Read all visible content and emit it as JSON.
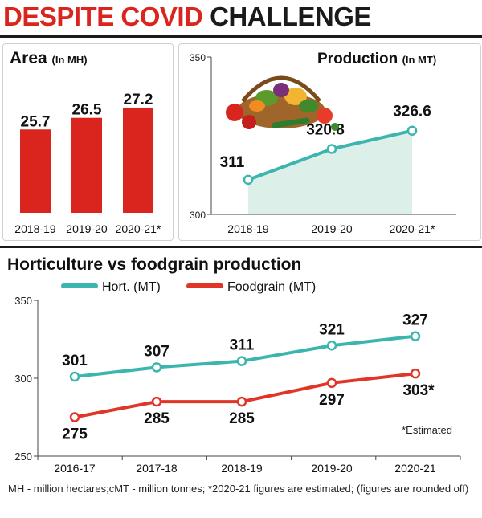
{
  "headline": {
    "part1": "DESPITE COVID",
    "part2": "CHALLENGE"
  },
  "colors": {
    "accent": "#d9251d",
    "hort": "#3bb5ad",
    "foodgrain": "#e13527",
    "area_fill": "#dcefe9"
  },
  "chart_data": [
    {
      "id": "area",
      "type": "bar",
      "title": "Area",
      "unit": "(In MH)",
      "categories": [
        "2018-19",
        "2019-20",
        "2020-21*"
      ],
      "values": [
        25.7,
        26.5,
        27.2
      ],
      "value_labels": [
        "25.7",
        "26.5",
        "27.2"
      ],
      "axis_min": 20,
      "axis_max": 30
    },
    {
      "id": "production",
      "type": "area",
      "title": "Production",
      "unit": "(In MT)",
      "categories": [
        "2018-19",
        "2019-20",
        "2020-21*"
      ],
      "values": [
        311,
        320.8,
        326.6
      ],
      "value_labels": [
        "311",
        "320.8",
        "326.6"
      ],
      "ylim": [
        300,
        350
      ],
      "yticks": [
        "350",
        "300"
      ]
    },
    {
      "id": "comparison",
      "type": "line",
      "title": "Horticulture vs foodgrain production",
      "categories": [
        "2016-17",
        "2017-18",
        "2018-19",
        "2019-20",
        "2020-21"
      ],
      "ylim": [
        250,
        350
      ],
      "yticks": [
        "350",
        "300",
        "250"
      ],
      "legend_position": "top",
      "series": [
        {
          "name": "Hort. (MT)",
          "values": [
            301,
            307,
            311,
            321,
            327
          ],
          "labels": [
            "301",
            "307",
            "311",
            "321",
            "327"
          ]
        },
        {
          "name": "Foodgrain (MT)",
          "values": [
            275,
            285,
            285,
            297,
            303
          ],
          "labels": [
            "275",
            "285",
            "285",
            "297",
            "303*"
          ]
        }
      ],
      "annotation": "*Estimated"
    }
  ],
  "footnote": "MH - million hectares;cMT - million tonnes; *2020-21 figures are estimated; (figures are rounded off)"
}
